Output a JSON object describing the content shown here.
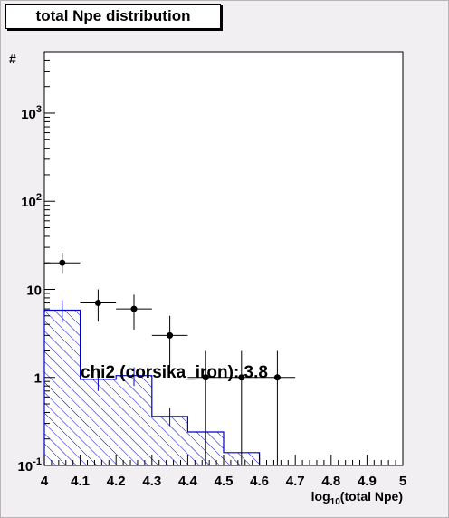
{
  "title": "total Npe distribution",
  "chart_data": {
    "type": "histogram",
    "title": "total Npe distribution",
    "xlabel": "log10(total Npe)",
    "xlabel_parts": {
      "pre": "log",
      "sub": "10",
      "post": "(total Npe)"
    },
    "ylabel": "#",
    "xlim": [
      4.0,
      5.0
    ],
    "ylim": [
      0.1,
      5000
    ],
    "y_log": true,
    "grid": false,
    "x_tick_labels": [
      "4",
      "4.1",
      "4.2",
      "4.3",
      "4.4",
      "4.5",
      "4.6",
      "4.7",
      "4.8",
      "4.9",
      "5"
    ],
    "y_tick_labels": [
      {
        "value": 0.1,
        "base": "10",
        "exp": "-1"
      },
      {
        "value": 1,
        "text": "1"
      },
      {
        "value": 10,
        "text": "10"
      },
      {
        "value": 100,
        "base": "10",
        "exp": "2"
      },
      {
        "value": 1000,
        "base": "10",
        "exp": "3"
      }
    ],
    "histogram": {
      "bin_edges": [
        4.0,
        4.1,
        4.2,
        4.3,
        4.4,
        4.5,
        4.6
      ],
      "values": [
        5.8,
        0.95,
        1.05,
        0.36,
        0.24,
        0.14
      ],
      "errors": [
        [
          4.2,
          7.5
        ],
        [
          0.7,
          1.2
        ],
        [
          0.8,
          1.3
        ],
        [
          0.28,
          0.45
        ],
        null,
        null
      ],
      "color": "#0000cc",
      "fill": "hatched"
    },
    "points": [
      {
        "x": 4.05,
        "y": 20,
        "ylo": 15,
        "yhi": 26,
        "xerr": 0.05
      },
      {
        "x": 4.15,
        "y": 7,
        "ylo": 4.3,
        "yhi": 10,
        "xerr": 0.05
      },
      {
        "x": 4.25,
        "y": 6,
        "ylo": 3.5,
        "yhi": 8.7,
        "xerr": 0.05
      },
      {
        "x": 4.35,
        "y": 3,
        "ylo": 1.3,
        "yhi": 5.0,
        "xerr": 0.05
      },
      {
        "x": 4.45,
        "y": 1,
        "ylo": 0.1,
        "yhi": 2.0,
        "xerr": 0.05
      },
      {
        "x": 4.55,
        "y": 1,
        "ylo": 0.1,
        "yhi": 2.0,
        "xerr": 0.05
      },
      {
        "x": 4.65,
        "y": 1,
        "ylo": 0.1,
        "yhi": 2.0,
        "xerr": 0.05
      }
    ],
    "annotation": "chi2 (corsika_iron): 3.8"
  }
}
